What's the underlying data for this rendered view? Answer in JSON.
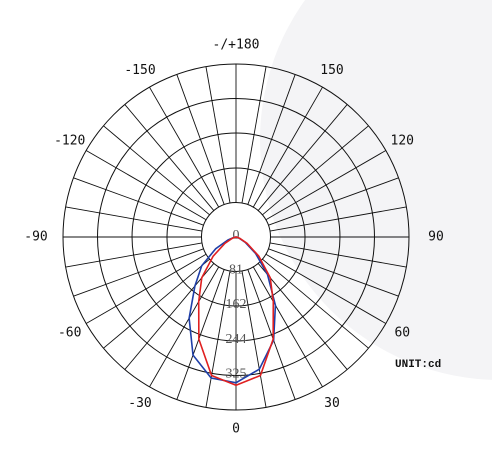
{
  "chart_data": {
    "type": "polar",
    "unit_label": "UNIT:cd",
    "theta": [
      -90,
      -80,
      -70,
      -60,
      -50,
      -40,
      -30,
      -20,
      -10,
      0,
      10,
      20,
      30,
      40,
      50,
      60,
      70,
      80,
      90
    ],
    "series": [
      {
        "color": "#1f3fa8",
        "values": [
          0,
          5,
          20,
          55,
          105,
          150,
          220,
          295,
          336,
          342,
          315,
          258,
          185,
          115,
          60,
          25,
          8,
          2,
          0
        ]
      },
      {
        "color": "#e02020",
        "values": [
          0,
          2,
          10,
          30,
          70,
          125,
          175,
          255,
          330,
          348,
          330,
          255,
          175,
          125,
          70,
          30,
          10,
          2,
          0
        ]
      }
    ],
    "rlim": [
      0,
      406
    ],
    "rticks": [
      0,
      81,
      162,
      244,
      325
    ],
    "thetaticks": [
      0,
      30,
      60,
      90,
      120,
      150,
      {
        "value": 180,
        "label": "-/+180"
      },
      -150,
      -120,
      -90,
      -60,
      -30
    ]
  }
}
